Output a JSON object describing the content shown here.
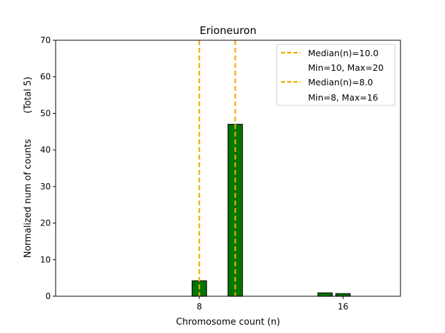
{
  "chart_data": {
    "type": "bar",
    "title": "Erioneuron",
    "xlabel": "Chromosome count (n)",
    "ylabel_line1": "Normalized num of counts",
    "ylabel_line2": "(Total 5)",
    "xlim": [
      0,
      19.2
    ],
    "ylim": [
      0,
      70
    ],
    "x_ticks": [
      8,
      16
    ],
    "y_ticks": [
      0,
      10,
      20,
      30,
      40,
      50,
      60,
      70
    ],
    "bar_color": "#007700",
    "bar_edge_color": "#000000",
    "bar_width": 0.8,
    "bars": [
      {
        "x": 8,
        "value": 4.2
      },
      {
        "x": 10,
        "value": 47
      },
      {
        "x": 15,
        "value": 0.9
      },
      {
        "x": 16,
        "value": 0.7
      }
    ],
    "median_lines": [
      {
        "x": 10,
        "color": "#f5a800",
        "legend_line1": "Median(n)=10.0",
        "legend_line2": "Min=10, Max=20"
      },
      {
        "x": 8,
        "color": "#f5a800",
        "legend_line1": "Median(n)=8.0",
        "legend_line2": "Min=8, Max=16"
      }
    ],
    "legend_position": "top-right",
    "grid": false
  }
}
